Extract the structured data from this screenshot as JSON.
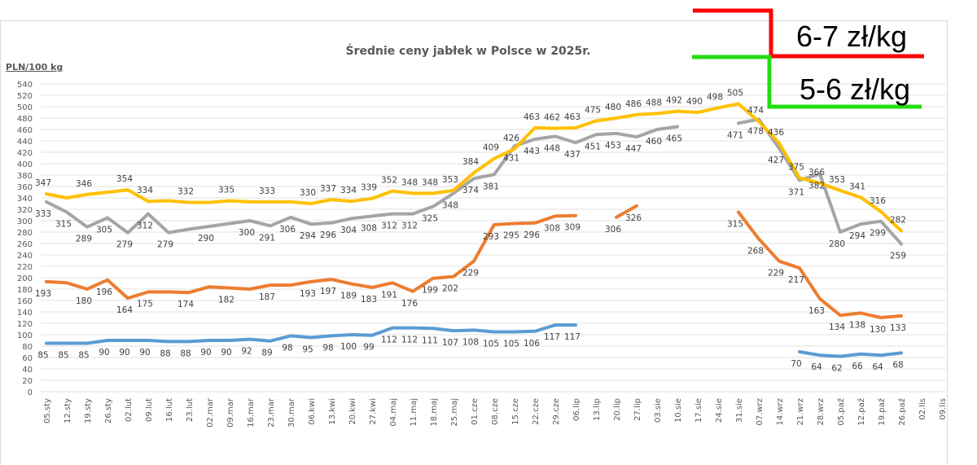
{
  "chart_data": {
    "type": "line",
    "title": "Średnie ceny jabłek w Polsce w 2025r.",
    "ylabel": "PLN/100 kg",
    "xlabel": "",
    "ylim": [
      0,
      540
    ],
    "yticks": [
      0,
      20,
      40,
      60,
      80,
      100,
      120,
      140,
      160,
      180,
      200,
      220,
      240,
      260,
      280,
      300,
      320,
      340,
      360,
      380,
      400,
      420,
      440,
      460,
      480,
      500,
      520,
      540
    ],
    "grid": true,
    "categories": [
      "05.sty",
      "12.sty",
      "19.sty",
      "26.sty",
      "02.lut",
      "09.lut",
      "16.lut",
      "23.lut",
      "02.mar",
      "09.mar",
      "16.mar",
      "23.mar",
      "30.mar",
      "06.kwi",
      "13.kwi",
      "20.kwi",
      "27.kwi",
      "04.maj",
      "11.maj",
      "18.maj",
      "25.maj",
      "01.cze",
      "08.cze",
      "15.cze",
      "22.cze",
      "29.cze",
      "06.lip",
      "13.lip",
      "20.lip",
      "27.lip",
      "03.sie",
      "10.sie",
      "17.sie",
      "24.sie",
      "31.sie",
      "07.wrz",
      "14.wrz",
      "21.wrz",
      "28.wrz",
      "05.paź",
      "12.paź",
      "19.paź",
      "26.paź",
      "02.lis",
      "09.lis"
    ],
    "series": [
      {
        "color": "#5b9bd5",
        "label_position": "below",
        "values": [
          85,
          85,
          85,
          90,
          90,
          90,
          88,
          88,
          90,
          90,
          92,
          89,
          98,
          95,
          98,
          100,
          99,
          112,
          112,
          111,
          107,
          108,
          105,
          105,
          106,
          117,
          117,
          null,
          null,
          null,
          null,
          null,
          null,
          null,
          null,
          null,
          null,
          70,
          64,
          62,
          66,
          64,
          68,
          null,
          null
        ],
        "unlabeled_indices": []
      },
      {
        "color": "#ed7d31",
        "label_position": "below",
        "values": [
          193,
          191,
          180,
          196,
          164,
          175,
          175,
          174,
          184,
          182,
          180,
          187,
          187,
          193,
          197,
          189,
          183,
          191,
          176,
          199,
          202,
          229,
          293,
          295,
          296,
          308,
          309,
          null,
          306,
          326,
          null,
          null,
          null,
          null,
          315,
          268,
          229,
          217,
          163,
          134,
          138,
          130,
          133,
          null,
          null
        ],
        "unlabeled_indices": [
          1,
          6,
          8,
          10,
          12
        ]
      },
      {
        "color": "#a5a5a5",
        "label_position": "below",
        "values": [
          333,
          315,
          289,
          305,
          279,
          312,
          279,
          285,
          290,
          295,
          300,
          291,
          306,
          294,
          296,
          304,
          308,
          312,
          312,
          325,
          348,
          374,
          381,
          431,
          443,
          448,
          437,
          451,
          453,
          447,
          460,
          465,
          null,
          null,
          471,
          478,
          427,
          371,
          382,
          280,
          294,
          299,
          259,
          null,
          null
        ],
        "unlabeled_indices": [
          7,
          9
        ]
      },
      {
        "color": "#ffc000",
        "label_position": "above",
        "values": [
          347,
          340,
          346,
          350,
          354,
          334,
          335,
          332,
          332,
          335,
          333,
          333,
          333,
          330,
          337,
          334,
          339,
          352,
          348,
          348,
          353,
          384,
          409,
          426,
          463,
          462,
          463,
          475,
          480,
          486,
          488,
          492,
          490,
          498,
          505,
          474,
          436,
          375,
          366,
          353,
          341,
          316,
          282,
          null,
          null
        ],
        "unlabeled_indices": [
          1,
          3,
          6,
          8,
          10,
          12
        ]
      }
    ]
  },
  "annotations": {
    "upper": {
      "text": "6-7 zł/kg",
      "color": "#ff0000"
    },
    "lower": {
      "text": "5-6 zł/kg",
      "color": "#22dd11"
    }
  }
}
